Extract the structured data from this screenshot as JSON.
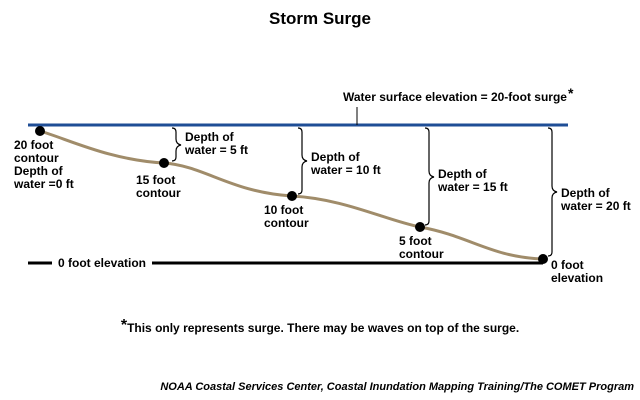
{
  "title": "Storm Surge",
  "water_surface_label": "Water surface elevation = 20-foot surge",
  "asterisk": "*",
  "zero_elevation_label": "0 foot elevation",
  "contours": [
    {
      "label": "20 foot\ncontour\nDepth of\nwater =0 ft"
    },
    {
      "label": "15 foot\ncontour"
    },
    {
      "label": "10 foot\ncontour"
    },
    {
      "label": "5 foot\ncontour"
    },
    {
      "label": "0 foot\nelevation"
    }
  ],
  "depths": [
    {
      "label": "Depth of\nwater = 5 ft"
    },
    {
      "label": "Depth of\nwater = 10 ft"
    },
    {
      "label": "Depth of\nwater = 15 ft"
    },
    {
      "label": "Depth of\nwater = 20 ft"
    }
  ],
  "footnote": "This only represents surge. There may be waves on top of the surge.",
  "credit": "NOAA Coastal Services Center, Coastal Inundation Mapping Training/The COMET Program",
  "colors": {
    "water_line": "#1f4e96",
    "ground_line": "#a08c6a",
    "baseline": "#000000",
    "text": "#000000"
  }
}
